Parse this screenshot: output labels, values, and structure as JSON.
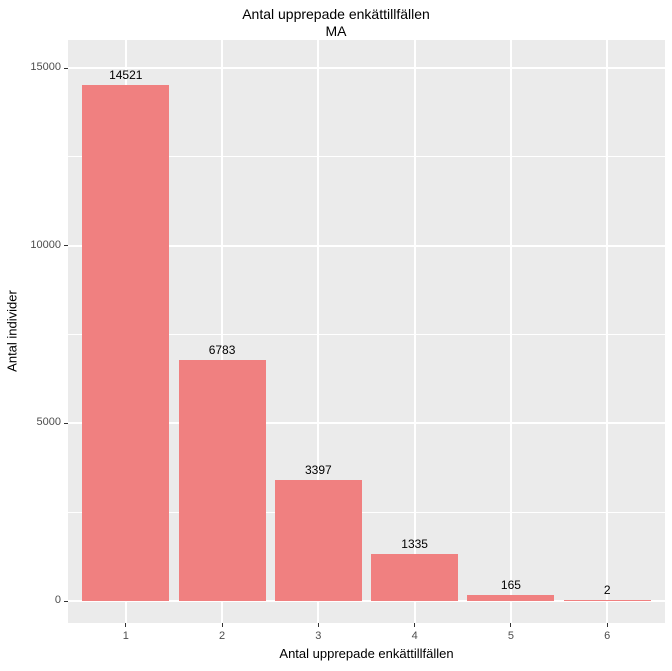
{
  "chart_data": {
    "type": "bar",
    "title": "Antal upprepade enkättillfällen",
    "subtitle": "MA",
    "xlabel": "Antal upprepade enkättillfällen",
    "ylabel": "Antal individer",
    "categories": [
      "1",
      "2",
      "3",
      "4",
      "5",
      "6"
    ],
    "values": [
      14521,
      6783,
      3397,
      1335,
      165,
      2
    ],
    "bar_labels": [
      "14521",
      "6783",
      "3397",
      "1335",
      "165",
      "2"
    ],
    "y_ticks": [
      0,
      5000,
      10000,
      15000
    ],
    "y_tick_labels": [
      "0",
      "5000",
      "10000",
      "15000"
    ],
    "y_minor_ticks": [
      2500,
      7500,
      12500
    ],
    "ylim": [
      0,
      15800
    ],
    "grid": true,
    "legend_position": "none",
    "colors": {
      "bar_fill": "#F08080",
      "panel_background": "#EBEBEB",
      "grid_major": "#FFFFFF",
      "grid_minor": "#FFFFFF",
      "tick_label": "#4D4D4D",
      "text": "#000000"
    }
  }
}
